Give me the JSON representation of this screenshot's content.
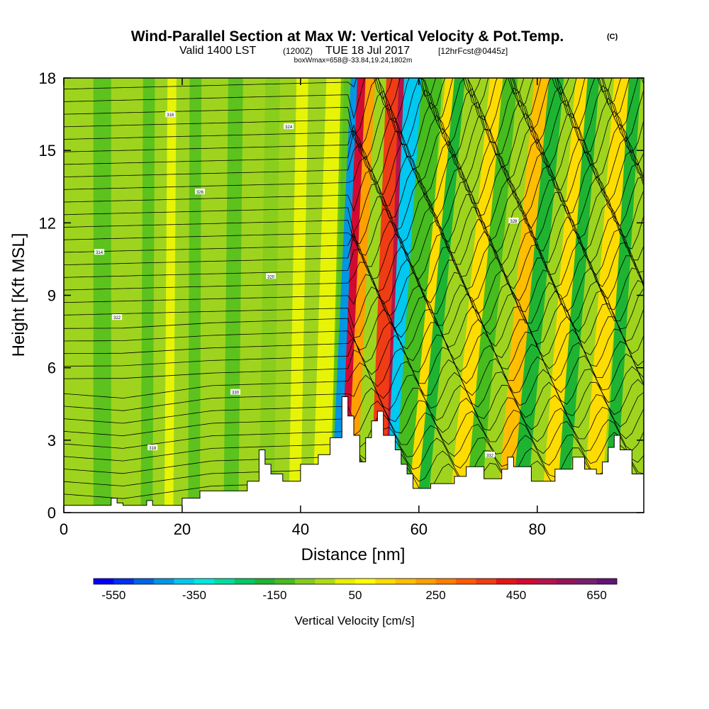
{
  "chart_data": {
    "type": "heatmap",
    "title": "Wind-Parallel Section at Max W: Vertical Velocity & Pot.Temp.",
    "title_mark": "(C)",
    "subtitle": {
      "valid": "Valid 1400 LST",
      "utc": "(1200Z)",
      "date": "TUE 18 Jul 2017",
      "forecast": "[12hrFcst@0445z]"
    },
    "box_info": "boxWmax=658@-33.84,19.24,1802m",
    "xlabel": "Distance [nm]",
    "ylabel": "Height [Kft MSL]",
    "xlim": [
      0,
      98
    ],
    "ylim": [
      0,
      18
    ],
    "x_ticks": [
      0,
      20,
      40,
      60,
      80
    ],
    "y_ticks": [
      0,
      3,
      6,
      9,
      12,
      15,
      18
    ],
    "colorbar": {
      "label": "Vertical Velocity [cm/s]",
      "min": -600,
      "max": 700,
      "step": 50,
      "tick_labels": [
        -550,
        -350,
        -150,
        50,
        250,
        450,
        650
      ],
      "colors": [
        "#0000ff",
        "#0030f0",
        "#0064e8",
        "#0096e6",
        "#00c8f0",
        "#00e8e0",
        "#00dca0",
        "#00c864",
        "#1eb432",
        "#46bc1e",
        "#82cc1e",
        "#aedc14",
        "#e6f000",
        "#ffff00",
        "#ffdc00",
        "#ffbe00",
        "#ffa000",
        "#ff7d00",
        "#ff5a00",
        "#f03c14",
        "#e61414",
        "#d20a32",
        "#b4144b",
        "#96145a",
        "#781e6e",
        "#641478"
      ]
    },
    "updraft_max": 658,
    "terrain_profile": {
      "x_nm": [
        0,
        8,
        8,
        9,
        9,
        10,
        10,
        14,
        14,
        15,
        15,
        20,
        20,
        23,
        23,
        31,
        31,
        33,
        33,
        34,
        34,
        35,
        35,
        37,
        37,
        40,
        40,
        43,
        43,
        45,
        45,
        47,
        47,
        48,
        48,
        49,
        49,
        50,
        50,
        51,
        51,
        52,
        52,
        53,
        53,
        54,
        54,
        56,
        56,
        57,
        57,
        58,
        58,
        59,
        59,
        62,
        62,
        66,
        66,
        68,
        68,
        71,
        71,
        74,
        74,
        75,
        75,
        76,
        76,
        79,
        79,
        83,
        83,
        86,
        86,
        88,
        88,
        90,
        90,
        91,
        91,
        92,
        92,
        93,
        93,
        94,
        94,
        96,
        96,
        98
      ],
      "height_kft": [
        0.3,
        0.3,
        0.6,
        0.6,
        0.4,
        0.4,
        0.3,
        0.3,
        0.5,
        0.5,
        0.3,
        0.3,
        0.6,
        0.6,
        0.9,
        0.9,
        1.3,
        1.3,
        2.6,
        2.6,
        2.0,
        2.0,
        1.6,
        1.6,
        1.3,
        1.3,
        2.0,
        2.0,
        2.4,
        2.4,
        3.1,
        3.1,
        4.8,
        4.8,
        4.0,
        4.0,
        3.2,
        3.2,
        2.1,
        2.1,
        3.1,
        3.1,
        3.8,
        3.8,
        4.2,
        4.2,
        3.2,
        3.2,
        2.6,
        2.6,
        2.0,
        2.0,
        1.6,
        1.6,
        1.0,
        1.0,
        1.2,
        1.2,
        1.5,
        1.5,
        1.9,
        1.9,
        1.4,
        1.4,
        1.8,
        1.8,
        2.3,
        2.3,
        1.9,
        1.9,
        1.3,
        1.3,
        1.8,
        1.8,
        2.3,
        2.3,
        1.8,
        1.8,
        1.6,
        1.6,
        2.1,
        2.1,
        2.7,
        2.7,
        3.2,
        3.2,
        2.6,
        2.6,
        1.6,
        1.6
      ]
    },
    "isentrope_labels": [
      "314",
      "316",
      "318",
      "320",
      "322",
      "324",
      "326",
      "328",
      "330",
      "332"
    ]
  }
}
